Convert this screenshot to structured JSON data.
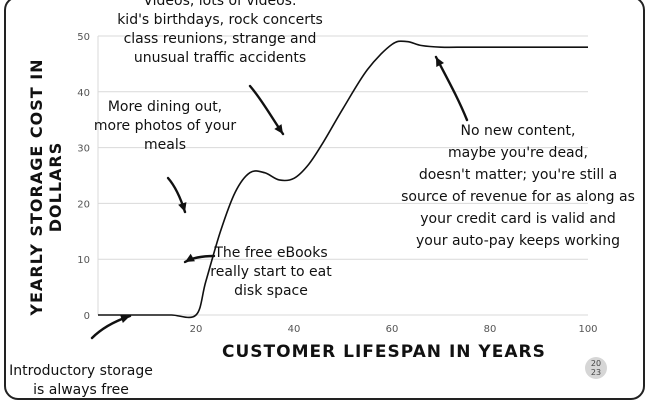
{
  "chart_data": {
    "type": "line",
    "xlabel": "Customer lifespan in years",
    "ylabel": "Yearly storage cost in dollars",
    "xlim": [
      0,
      100
    ],
    "ylim": [
      0,
      50
    ],
    "xticks": [
      20,
      40,
      60,
      80,
      100
    ],
    "yticks": [
      0,
      10,
      20,
      30,
      40,
      50
    ],
    "grid": "horizontal",
    "series": [
      {
        "x": [
          0,
          5,
          10,
          15,
          20,
          22,
          25,
          28,
          31,
          34,
          37,
          40,
          43,
          46,
          50,
          55,
          60,
          63,
          66,
          70,
          75,
          80,
          90,
          100
        ],
        "y": [
          0,
          0,
          0,
          0,
          0,
          6,
          15,
          22,
          25.5,
          25.5,
          24.2,
          24.5,
          27,
          31,
          37,
          44,
          48.5,
          49,
          48.3,
          48,
          48,
          48,
          48,
          48
        ]
      }
    ],
    "annotations": [
      {
        "lines": [
          "Videos, lots of videos:",
          "kid's birthdays, rock concerts",
          "class reunions, strange and",
          "unusual traffic accidents"
        ]
      },
      {
        "lines": [
          "More dining out,",
          "more photos of your",
          "meals"
        ]
      },
      {
        "lines": [
          "The free eBooks",
          "really start to eat",
          "disk space"
        ]
      },
      {
        "lines": [
          "No new content,",
          "maybe you're dead,",
          "doesn't matter; you're still a",
          "source of revenue for as along as",
          "your credit card is valid and",
          "your auto-pay keeps working"
        ]
      },
      {
        "lines": [
          "Introductory storage",
          "is always free"
        ]
      }
    ],
    "badge_text": "20 23"
  }
}
